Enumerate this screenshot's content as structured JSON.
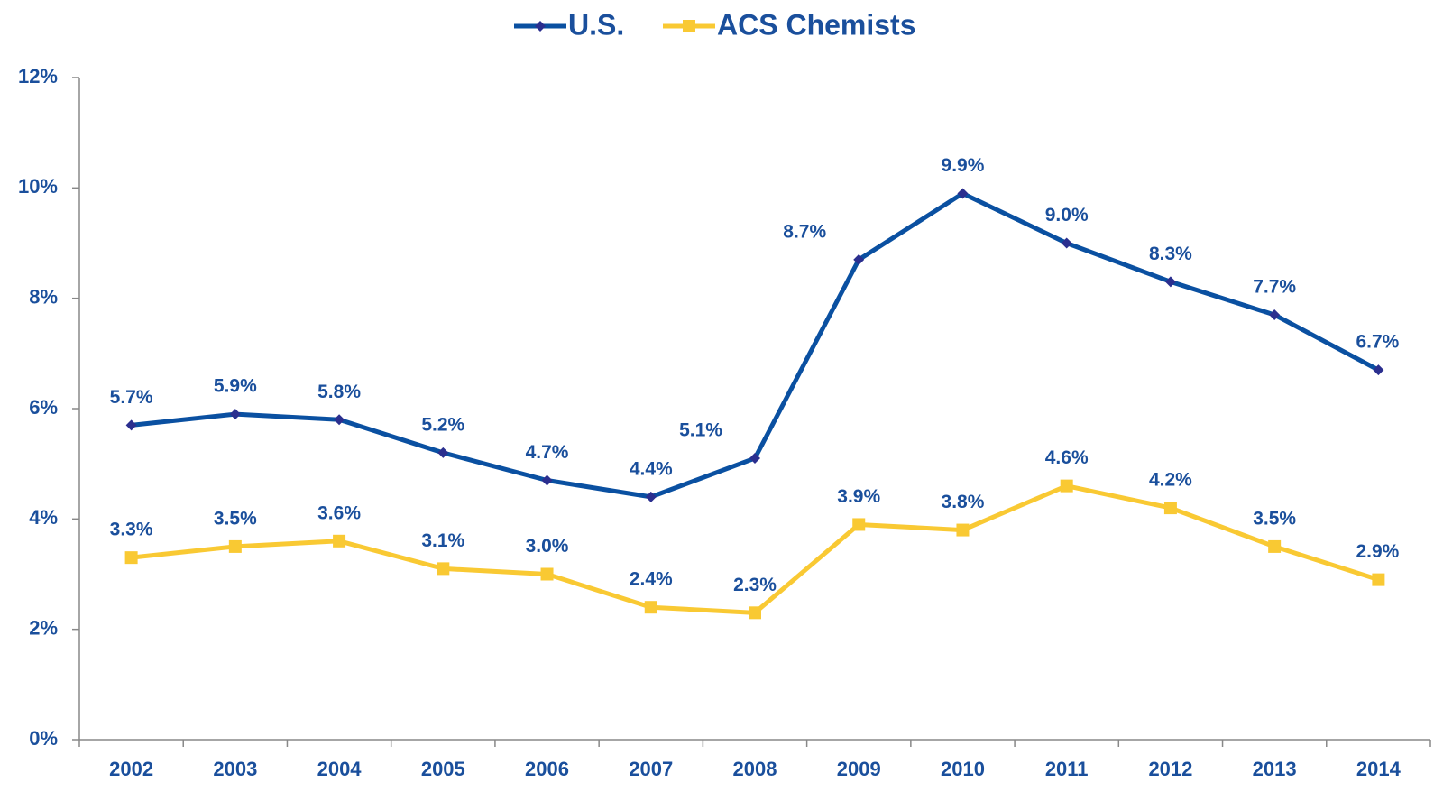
{
  "chart_data": {
    "type": "line",
    "categories": [
      "2002",
      "2003",
      "2004",
      "2005",
      "2006",
      "2007",
      "2008",
      "2009",
      "2010",
      "2011",
      "2012",
      "2013",
      "2014"
    ],
    "series": [
      {
        "name": "U.S.",
        "color": "#0a50a1",
        "marker": "diamond",
        "values": [
          5.7,
          5.9,
          5.8,
          5.2,
          4.7,
          4.4,
          5.1,
          8.7,
          9.9,
          9.0,
          8.3,
          7.7,
          6.7
        ],
        "value_labels": [
          "5.7%",
          "5.9%",
          "5.8%",
          "5.2%",
          "4.7%",
          "4.4%",
          "5.1%",
          "8.7%",
          "9.9%",
          "9.0%",
          "8.3%",
          "7.7%",
          "6.7%"
        ]
      },
      {
        "name": "ACS Chemists",
        "color": "#f9c933",
        "marker": "square",
        "values": [
          3.3,
          3.5,
          3.6,
          3.1,
          3.0,
          2.4,
          2.3,
          3.9,
          3.8,
          4.6,
          4.2,
          3.5,
          2.9
        ],
        "value_labels": [
          "3.3%",
          "3.5%",
          "3.6%",
          "3.1%",
          "3.0%",
          "2.4%",
          "2.3%",
          "3.9%",
          "3.8%",
          "4.6%",
          "4.2%",
          "3.5%",
          "2.9%"
        ]
      }
    ],
    "ylim": [
      0,
      12
    ],
    "yticks": [
      {
        "value": 0,
        "label": "0%"
      },
      {
        "value": 2,
        "label": "2%"
      },
      {
        "value": 4,
        "label": "4%"
      },
      {
        "value": 6,
        "label": "6%"
      },
      {
        "value": 8,
        "label": "8%"
      },
      {
        "value": 10,
        "label": "10%"
      },
      {
        "value": 12,
        "label": "12%"
      }
    ],
    "legend": "top"
  }
}
